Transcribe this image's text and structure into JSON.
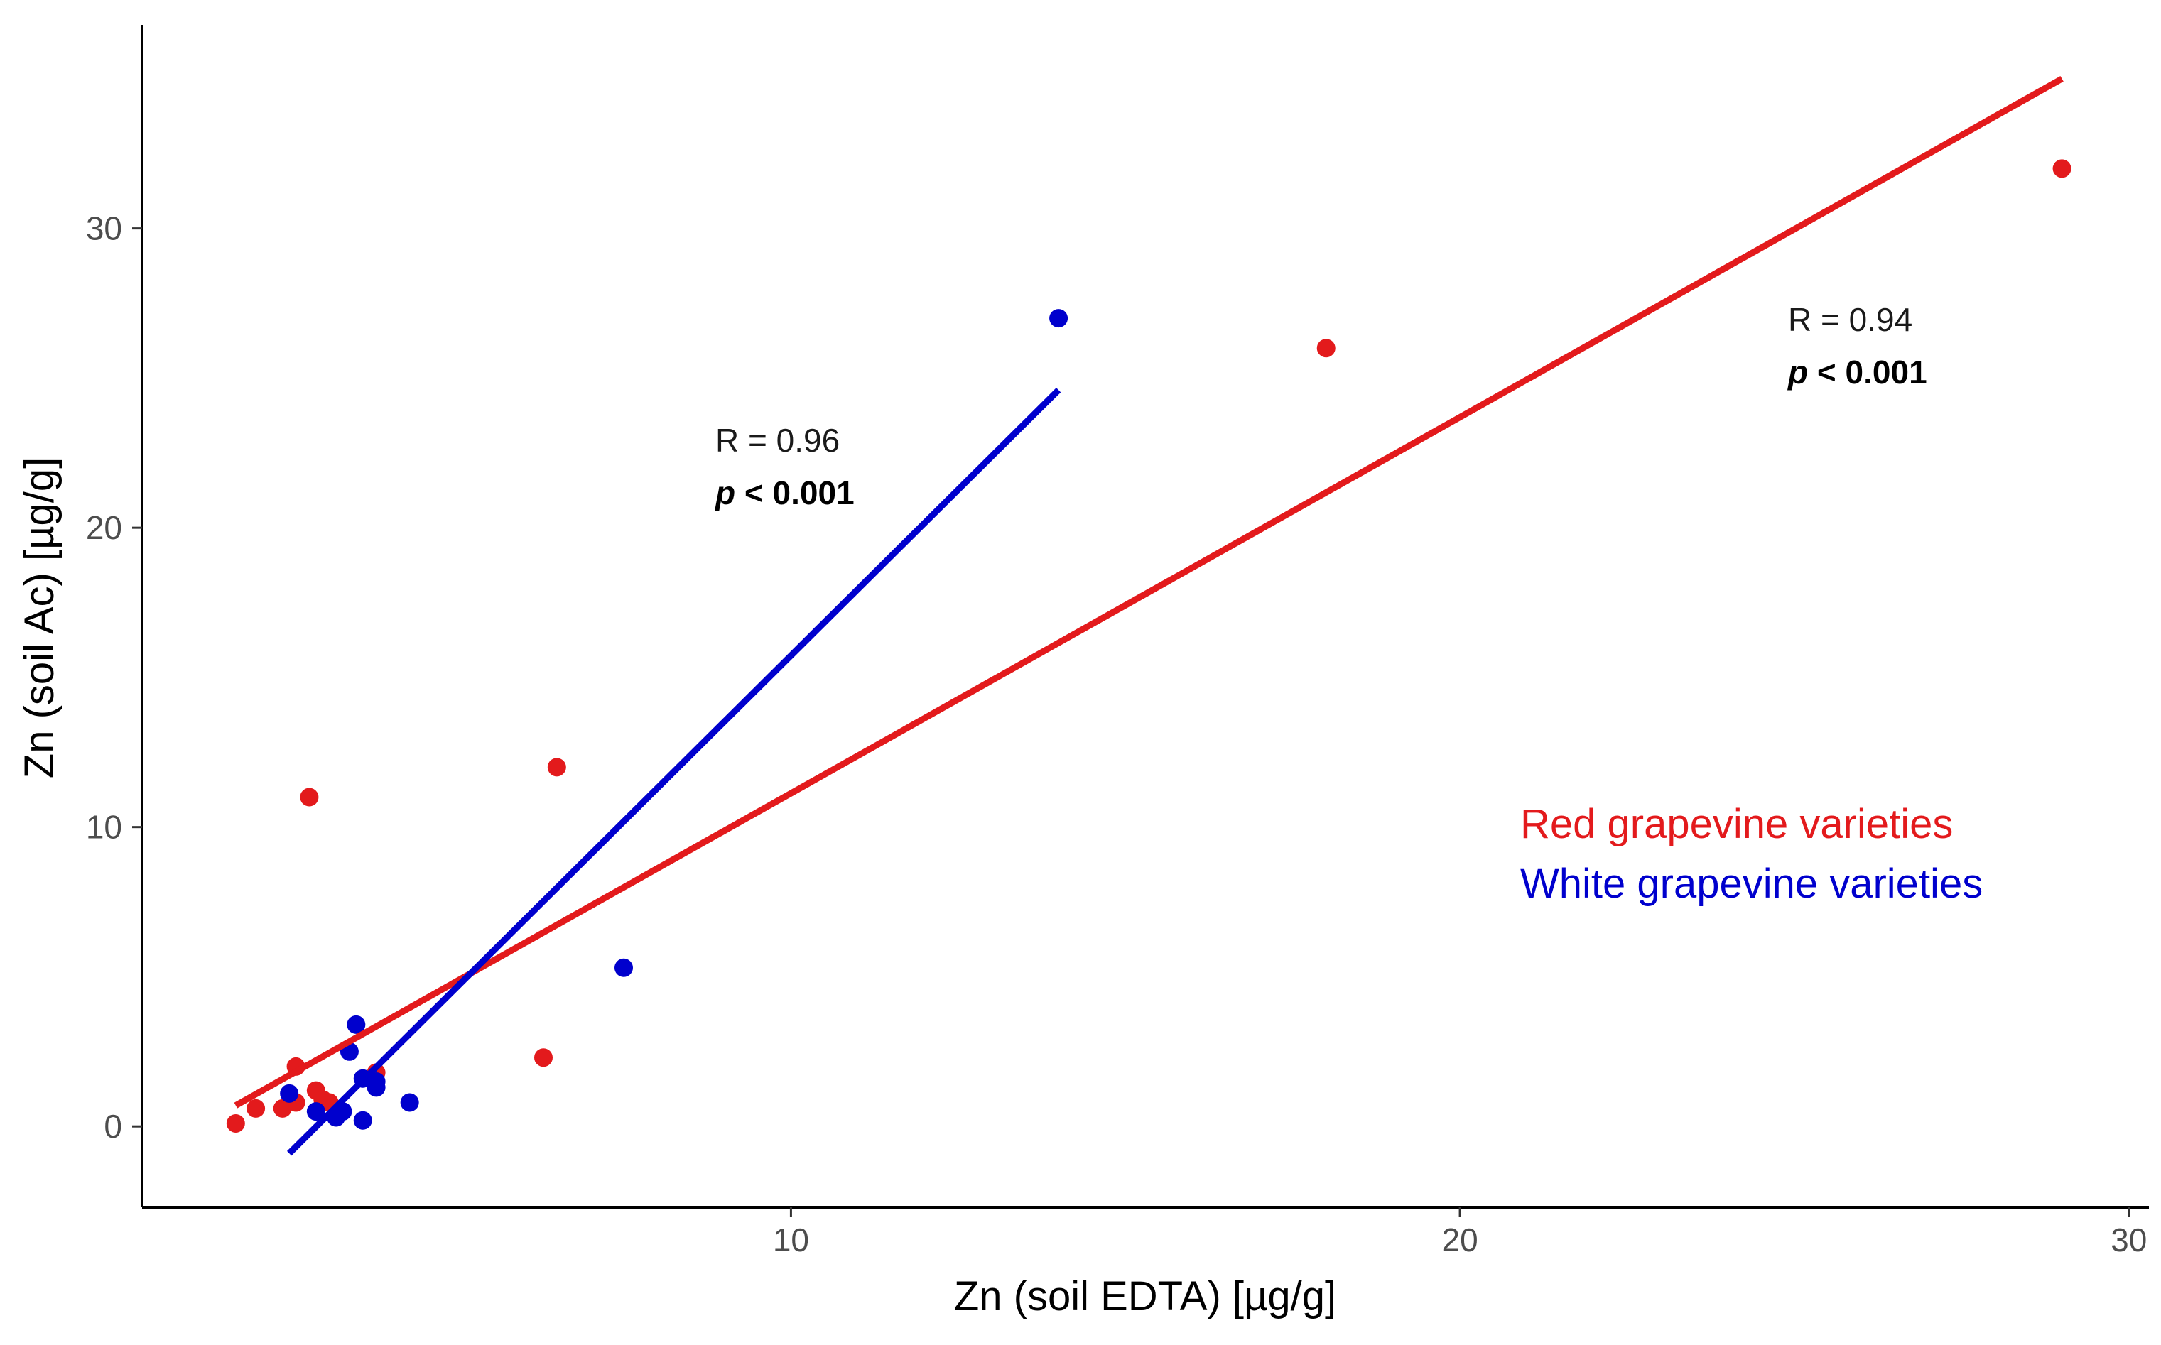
{
  "chart_data": {
    "type": "scatter",
    "title": "",
    "xlabel": "Zn (soil EDTA) [µg/g]",
    "ylabel": "Zn (soil Ac) [µg/g]",
    "xlim": [
      0.3,
      30.3
    ],
    "ylim": [
      -2.7,
      36.8
    ],
    "xticks": [
      10,
      20,
      30
    ],
    "yticks": [
      0,
      10,
      20,
      30
    ],
    "grid": false,
    "legend_position": "right",
    "series": [
      {
        "name": "Red grapevine varieties",
        "color": "#e31a1c",
        "points": [
          {
            "x": 1.7,
            "y": 0.1
          },
          {
            "x": 2.0,
            "y": 0.6
          },
          {
            "x": 2.4,
            "y": 0.6
          },
          {
            "x": 2.6,
            "y": 0.8
          },
          {
            "x": 2.6,
            "y": 2.0
          },
          {
            "x": 2.8,
            "y": 11.0
          },
          {
            "x": 2.9,
            "y": 1.2
          },
          {
            "x": 3.0,
            "y": 0.9
          },
          {
            "x": 3.1,
            "y": 0.8
          },
          {
            "x": 3.8,
            "y": 1.8
          },
          {
            "x": 6.5,
            "y": 12.0
          },
          {
            "x": 6.3,
            "y": 2.3
          },
          {
            "x": 18.0,
            "y": 26.0
          },
          {
            "x": 29.0,
            "y": 32.0
          }
        ],
        "fit": {
          "x0": 1.7,
          "y0": 0.7,
          "x1": 29.0,
          "y1": 35.0
        },
        "stats": {
          "r": "R = 0.94",
          "p_symbol": "p",
          "p_rest": " < 0.001"
        }
      },
      {
        "name": "White grapevine varieties",
        "color": "#0000cd",
        "points": [
          {
            "x": 2.5,
            "y": 1.1
          },
          {
            "x": 2.9,
            "y": 0.5
          },
          {
            "x": 3.2,
            "y": 0.3
          },
          {
            "x": 3.3,
            "y": 0.5
          },
          {
            "x": 3.4,
            "y": 2.5
          },
          {
            "x": 3.5,
            "y": 3.4
          },
          {
            "x": 3.6,
            "y": 1.6
          },
          {
            "x": 3.6,
            "y": 0.2
          },
          {
            "x": 3.8,
            "y": 1.3
          },
          {
            "x": 3.8,
            "y": 1.5
          },
          {
            "x": 4.3,
            "y": 0.8
          },
          {
            "x": 7.5,
            "y": 5.3
          },
          {
            "x": 14.0,
            "y": 27.0
          }
        ],
        "fit": {
          "x0": 2.5,
          "y0": -0.9,
          "x1": 14.0,
          "y1": 24.6
        },
        "stats": {
          "r": "R = 0.96",
          "p_symbol": "p",
          "p_rest": " < 0.001"
        }
      }
    ]
  }
}
